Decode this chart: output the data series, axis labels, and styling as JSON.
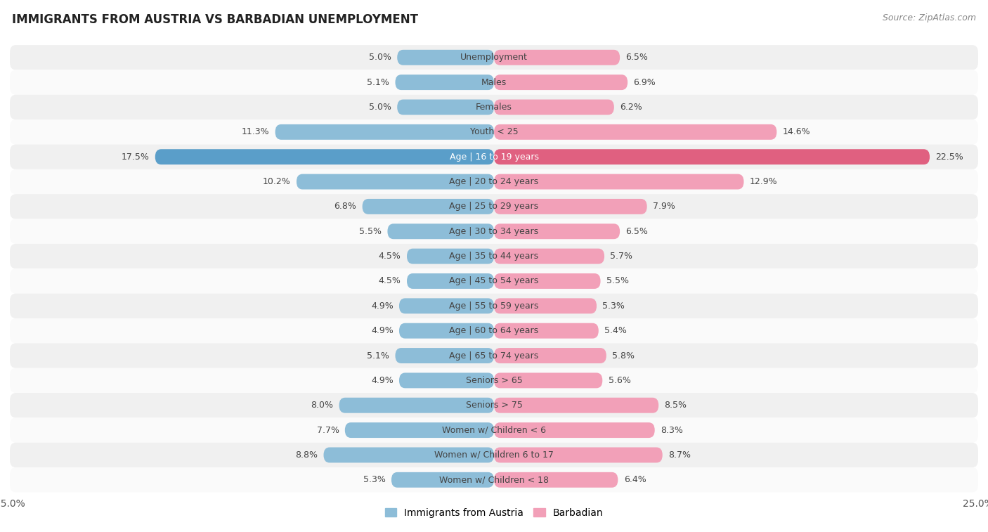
{
  "title": "IMMIGRANTS FROM AUSTRIA VS BARBADIAN UNEMPLOYMENT",
  "source": "Source: ZipAtlas.com",
  "categories": [
    "Unemployment",
    "Males",
    "Females",
    "Youth < 25",
    "Age | 16 to 19 years",
    "Age | 20 to 24 years",
    "Age | 25 to 29 years",
    "Age | 30 to 34 years",
    "Age | 35 to 44 years",
    "Age | 45 to 54 years",
    "Age | 55 to 59 years",
    "Age | 60 to 64 years",
    "Age | 65 to 74 years",
    "Seniors > 65",
    "Seniors > 75",
    "Women w/ Children < 6",
    "Women w/ Children 6 to 17",
    "Women w/ Children < 18"
  ],
  "austria_values": [
    5.0,
    5.1,
    5.0,
    11.3,
    17.5,
    10.2,
    6.8,
    5.5,
    4.5,
    4.5,
    4.9,
    4.9,
    5.1,
    4.9,
    8.0,
    7.7,
    8.8,
    5.3
  ],
  "barbadian_values": [
    6.5,
    6.9,
    6.2,
    14.6,
    22.5,
    12.9,
    7.9,
    6.5,
    5.7,
    5.5,
    5.3,
    5.4,
    5.8,
    5.6,
    8.5,
    8.3,
    8.7,
    6.4
  ],
  "austria_color": "#8dbdd8",
  "barbadian_color": "#f2a0b8",
  "austria_color_highlight": "#5a9ec9",
  "barbadian_color_highlight": "#e06080",
  "row_bg_odd": "#f0f0f0",
  "row_bg_even": "#fafafa",
  "xlim": 25.0,
  "label_austria": "Immigrants from Austria",
  "label_barbadian": "Barbadian",
  "title_fontsize": 12,
  "source_fontsize": 9,
  "legend_fontsize": 10,
  "axis_label_fontsize": 10,
  "bar_label_fontsize": 9,
  "cat_label_fontsize": 9,
  "highlight_row": "Age | 16 to 19 years"
}
